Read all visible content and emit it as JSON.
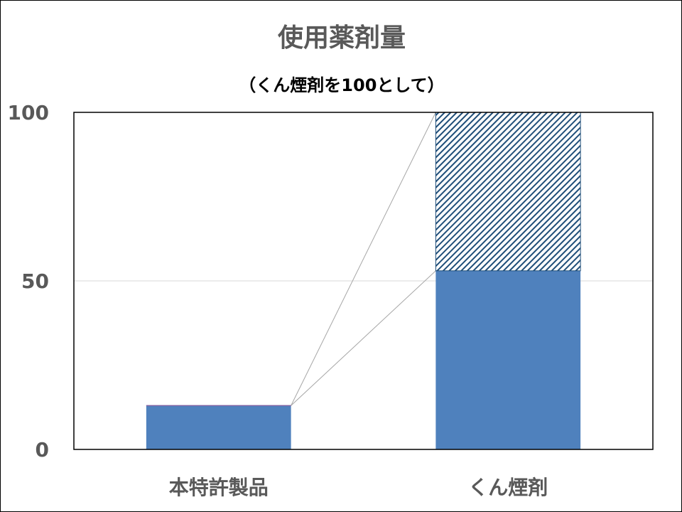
{
  "chart_data": {
    "type": "bar",
    "title": "使用薬剤量",
    "subtitle": "（くん煙剤を100として）",
    "categories": [
      "本特許製品",
      "くん煙剤"
    ],
    "series": [
      {
        "values": [
          13,
          53
        ],
        "color": "#4f81bd",
        "pattern": "solid"
      },
      {
        "values": [
          0,
          47
        ],
        "color": "#1f4e79",
        "pattern": "diagonal-hatch"
      }
    ],
    "yticks": [
      0,
      50,
      100
    ],
    "ylim": [
      0,
      100
    ],
    "grid": true,
    "series_lines": true
  },
  "colors": {
    "bar": "#4f81bd",
    "hatch": "#1f4e79",
    "text": "#595959",
    "gridline": "#d9d9d9",
    "connector": "#a6a6a6"
  }
}
